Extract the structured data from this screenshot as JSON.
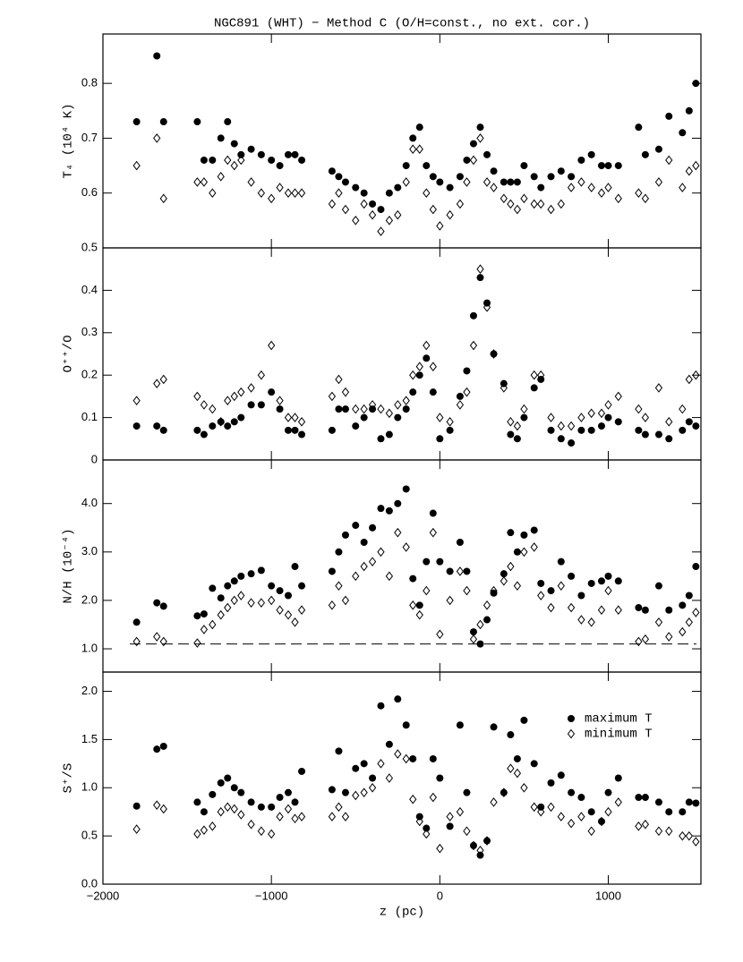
{
  "chart_data": [
    {
      "type": "scatter",
      "title": "NGC891 (WHT) − Method C (O/H=const., no ext. cor.)",
      "ylabel": "T₄ (10⁴ K)",
      "x": [
        -1800,
        -1680,
        -1640,
        -1440,
        -1400,
        -1350,
        -1300,
        -1260,
        -1220,
        -1180,
        -1120,
        -1060,
        -1000,
        -950,
        -900,
        -860,
        -820,
        -640,
        -600,
        -560,
        -500,
        -450,
        -400,
        -350,
        -300,
        -250,
        -200,
        -160,
        -120,
        -80,
        -40,
        0,
        60,
        120,
        160,
        200,
        240,
        280,
        320,
        380,
        420,
        460,
        500,
        560,
        600,
        660,
        720,
        780,
        840,
        900,
        960,
        1000,
        1060,
        1180,
        1220,
        1300,
        1360,
        1440,
        1480,
        1520
      ],
      "xlim": [
        -2000,
        1550
      ],
      "ylim": [
        0.5,
        0.89
      ],
      "yticks": [
        0.5,
        0.6,
        0.7,
        0.8
      ],
      "series": [
        {
          "color": "#000000",
          "marker": "circle",
          "values": [
            0.73,
            0.85,
            0.73,
            0.73,
            0.66,
            0.66,
            0.7,
            0.73,
            0.69,
            0.67,
            0.68,
            0.67,
            0.66,
            0.65,
            0.67,
            0.67,
            0.66,
            0.64,
            0.63,
            0.62,
            0.61,
            0.6,
            0.58,
            0.57,
            0.6,
            0.61,
            0.65,
            0.7,
            0.72,
            0.65,
            0.63,
            0.62,
            0.61,
            0.63,
            0.66,
            0.69,
            0.72,
            0.67,
            0.64,
            0.62,
            0.62,
            0.62,
            0.65,
            0.63,
            0.61,
            0.63,
            0.64,
            0.63,
            0.66,
            0.67,
            0.65,
            0.65,
            0.65,
            0.72,
            0.67,
            0.68,
            0.74,
            0.71,
            0.75,
            0.8
          ]
        },
        {
          "color": "#000000",
          "marker": "diamond",
          "values": [
            0.65,
            0.7,
            0.59,
            0.62,
            0.62,
            0.6,
            0.63,
            0.66,
            0.65,
            0.66,
            0.62,
            0.6,
            0.59,
            0.61,
            0.6,
            0.6,
            0.6,
            0.58,
            0.6,
            0.57,
            0.55,
            0.58,
            0.56,
            0.53,
            0.55,
            0.56,
            0.62,
            0.68,
            0.68,
            0.6,
            0.57,
            0.54,
            0.56,
            0.58,
            0.62,
            0.66,
            0.7,
            0.62,
            0.61,
            0.59,
            0.58,
            0.57,
            0.59,
            0.58,
            0.58,
            0.57,
            0.58,
            0.61,
            0.62,
            0.61,
            0.6,
            0.61,
            0.59,
            0.6,
            0.59,
            0.62,
            0.66,
            0.61,
            0.64,
            0.65
          ]
        }
      ]
    },
    {
      "type": "scatter",
      "ylabel": "O⁺⁺/O",
      "x": [
        -1800,
        -1680,
        -1640,
        -1440,
        -1400,
        -1350,
        -1300,
        -1260,
        -1220,
        -1180,
        -1120,
        -1060,
        -1000,
        -950,
        -900,
        -860,
        -820,
        -640,
        -600,
        -560,
        -500,
        -450,
        -400,
        -350,
        -300,
        -250,
        -200,
        -160,
        -120,
        -80,
        -40,
        0,
        60,
        120,
        160,
        200,
        240,
        280,
        320,
        380,
        420,
        460,
        500,
        560,
        600,
        660,
        720,
        780,
        840,
        900,
        960,
        1000,
        1060,
        1180,
        1220,
        1300,
        1360,
        1440,
        1480,
        1520
      ],
      "xlim": [
        -2000,
        1550
      ],
      "ylim": [
        0,
        0.5
      ],
      "yticks": [
        0,
        0.1,
        0.2,
        0.3,
        0.4
      ],
      "series": [
        {
          "color": "#000000",
          "marker": "circle",
          "values": [
            0.08,
            0.08,
            0.07,
            0.07,
            0.06,
            0.08,
            0.09,
            0.08,
            0.09,
            0.1,
            0.13,
            0.13,
            0.16,
            0.12,
            0.07,
            0.07,
            0.06,
            0.07,
            0.12,
            0.12,
            0.08,
            0.1,
            0.12,
            0.05,
            0.06,
            0.1,
            0.12,
            0.16,
            0.2,
            0.24,
            0.16,
            0.05,
            0.07,
            0.15,
            0.21,
            0.34,
            0.43,
            0.37,
            0.25,
            0.18,
            0.06,
            0.05,
            0.1,
            0.17,
            0.19,
            0.07,
            0.05,
            0.04,
            0.07,
            0.07,
            0.08,
            0.1,
            0.09,
            0.07,
            0.06,
            0.06,
            0.05,
            0.07,
            0.09,
            0.08
          ]
        },
        {
          "color": "#000000",
          "marker": "diamond",
          "values": [
            0.14,
            0.18,
            0.19,
            0.15,
            0.13,
            0.12,
            0.09,
            0.14,
            0.15,
            0.16,
            0.17,
            0.2,
            0.27,
            0.14,
            0.1,
            0.1,
            0.09,
            0.15,
            0.19,
            0.16,
            0.12,
            0.12,
            0.13,
            0.12,
            0.11,
            0.13,
            0.14,
            0.2,
            0.22,
            0.27,
            0.22,
            0.1,
            0.09,
            0.13,
            0.16,
            0.27,
            0.45,
            0.36,
            0.25,
            0.17,
            0.09,
            0.08,
            0.12,
            0.2,
            0.2,
            0.1,
            0.08,
            0.08,
            0.1,
            0.11,
            0.11,
            0.13,
            0.15,
            0.12,
            0.1,
            0.17,
            0.09,
            0.12,
            0.19,
            0.2
          ]
        }
      ]
    },
    {
      "type": "scatter",
      "ylabel": "N/H (10⁻⁴)",
      "x": [
        -1800,
        -1680,
        -1640,
        -1440,
        -1400,
        -1350,
        -1300,
        -1260,
        -1220,
        -1180,
        -1120,
        -1060,
        -1000,
        -950,
        -900,
        -860,
        -820,
        -640,
        -600,
        -560,
        -500,
        -450,
        -400,
        -350,
        -300,
        -250,
        -200,
        -160,
        -120,
        -80,
        -40,
        0,
        60,
        120,
        160,
        200,
        240,
        280,
        320,
        380,
        420,
        460,
        500,
        560,
        600,
        660,
        720,
        780,
        840,
        900,
        960,
        1000,
        1060,
        1180,
        1220,
        1300,
        1360,
        1440,
        1480,
        1520
      ],
      "xlim": [
        -2000,
        1550
      ],
      "ylim": [
        0.52,
        4.9
      ],
      "yticks": [
        {
          "value": 1,
          "label": "1.0"
        },
        {
          "value": 2,
          "label": "2.0"
        },
        {
          "value": 3,
          "label": "3.0"
        },
        {
          "value": 4,
          "label": "4.0"
        }
      ],
      "reference_line": 1.1,
      "series": [
        {
          "color": "#000000",
          "marker": "circle",
          "values": [
            1.55,
            1.95,
            1.88,
            1.68,
            1.72,
            2.25,
            2.05,
            2.3,
            2.4,
            2.5,
            2.55,
            2.62,
            2.3,
            2.2,
            2.1,
            2.7,
            2.3,
            2.6,
            3.0,
            3.35,
            3.55,
            3.2,
            3.5,
            3.9,
            3.85,
            4.0,
            4.3,
            2.45,
            1.9,
            2.8,
            3.8,
            2.8,
            2.6,
            3.2,
            2.6,
            1.35,
            1.1,
            1.6,
            2.15,
            2.55,
            3.4,
            3.0,
            3.35,
            3.45,
            2.35,
            2.2,
            2.8,
            2.5,
            2.1,
            2.35,
            2.4,
            2.5,
            2.4,
            1.85,
            1.8,
            2.3,
            1.8,
            1.9,
            2.1,
            2.7
          ]
        },
        {
          "color": "#000000",
          "marker": "diamond",
          "values": [
            1.15,
            1.25,
            1.15,
            1.12,
            1.4,
            1.5,
            1.7,
            1.85,
            2.0,
            2.1,
            1.95,
            1.95,
            2.0,
            1.8,
            1.7,
            1.55,
            1.8,
            1.9,
            2.3,
            2.0,
            2.5,
            2.7,
            2.8,
            3.0,
            2.5,
            3.4,
            3.1,
            1.9,
            1.7,
            2.2,
            3.4,
            1.3,
            2.0,
            2.6,
            2.2,
            1.2,
            1.5,
            1.9,
            2.2,
            2.4,
            2.7,
            2.3,
            3.0,
            3.1,
            2.1,
            1.85,
            2.3,
            1.85,
            1.6,
            1.55,
            1.8,
            2.2,
            1.8,
            1.15,
            1.2,
            1.55,
            1.25,
            1.35,
            1.55,
            1.75
          ]
        }
      ]
    },
    {
      "type": "scatter",
      "ylabel": "S⁺/S",
      "xlabel": "z (pc)",
      "legend": "upper right",
      "x": [
        -1800,
        -1680,
        -1640,
        -1440,
        -1400,
        -1350,
        -1300,
        -1260,
        -1220,
        -1180,
        -1120,
        -1060,
        -1000,
        -950,
        -900,
        -860,
        -820,
        -640,
        -600,
        -560,
        -500,
        -450,
        -400,
        -350,
        -300,
        -250,
        -200,
        -160,
        -120,
        -80,
        -40,
        0,
        60,
        120,
        160,
        200,
        240,
        280,
        320,
        380,
        420,
        460,
        500,
        560,
        600,
        660,
        720,
        780,
        840,
        900,
        960,
        1000,
        1060,
        1180,
        1220,
        1300,
        1360,
        1440,
        1480,
        1520
      ],
      "xlim": [
        -2000,
        1550
      ],
      "xticks": [
        {
          "value": -2000,
          "label": "−2000"
        },
        {
          "value": -1000,
          "label": "−1000"
        },
        0,
        1000
      ],
      "ylim": [
        0,
        2.2
      ],
      "yticks": [
        {
          "value": 0,
          "label": "0.0"
        },
        {
          "value": 0.5,
          "label": "0.5"
        },
        {
          "value": 1,
          "label": "1.0"
        },
        {
          "value": 1.5,
          "label": "1.5"
        },
        {
          "value": 2,
          "label": "2.0"
        }
      ],
      "series": [
        {
          "name": "maximum T",
          "color": "#000000",
          "marker": "circle",
          "values": [
            0.81,
            1.4,
            1.43,
            0.85,
            0.75,
            0.93,
            1.05,
            1.1,
            1.0,
            0.95,
            0.85,
            0.8,
            0.8,
            0.9,
            0.95,
            0.85,
            1.17,
            0.98,
            1.38,
            0.95,
            1.2,
            1.25,
            1.1,
            1.85,
            1.45,
            1.92,
            1.65,
            1.3,
            0.7,
            0.58,
            1.3,
            1.1,
            0.6,
            1.65,
            0.95,
            0.4,
            0.3,
            0.45,
            1.63,
            0.95,
            1.55,
            1.3,
            1.7,
            1.25,
            0.8,
            1.05,
            1.13,
            0.95,
            0.9,
            0.75,
            0.65,
            0.95,
            1.1,
            0.9,
            0.9,
            0.85,
            0.75,
            0.75,
            0.85,
            0.84
          ]
        },
        {
          "name": "minimum T",
          "color": "#000000",
          "marker": "diamond",
          "values": [
            0.57,
            0.82,
            0.78,
            0.52,
            0.56,
            0.6,
            0.75,
            0.8,
            0.78,
            0.72,
            0.62,
            0.55,
            0.52,
            0.7,
            0.78,
            0.68,
            0.7,
            0.7,
            0.8,
            0.7,
            0.92,
            0.95,
            1.0,
            1.25,
            1.1,
            1.35,
            1.3,
            0.88,
            0.65,
            0.52,
            0.9,
            0.37,
            0.7,
            0.75,
            0.55,
            0.4,
            0.35,
            0.45,
            0.85,
            0.95,
            1.2,
            1.15,
            1.0,
            0.8,
            0.75,
            0.8,
            0.7,
            0.63,
            0.7,
            0.55,
            0.65,
            0.75,
            0.85,
            0.6,
            0.62,
            0.55,
            0.55,
            0.5,
            0.5,
            0.44
          ]
        }
      ]
    }
  ]
}
